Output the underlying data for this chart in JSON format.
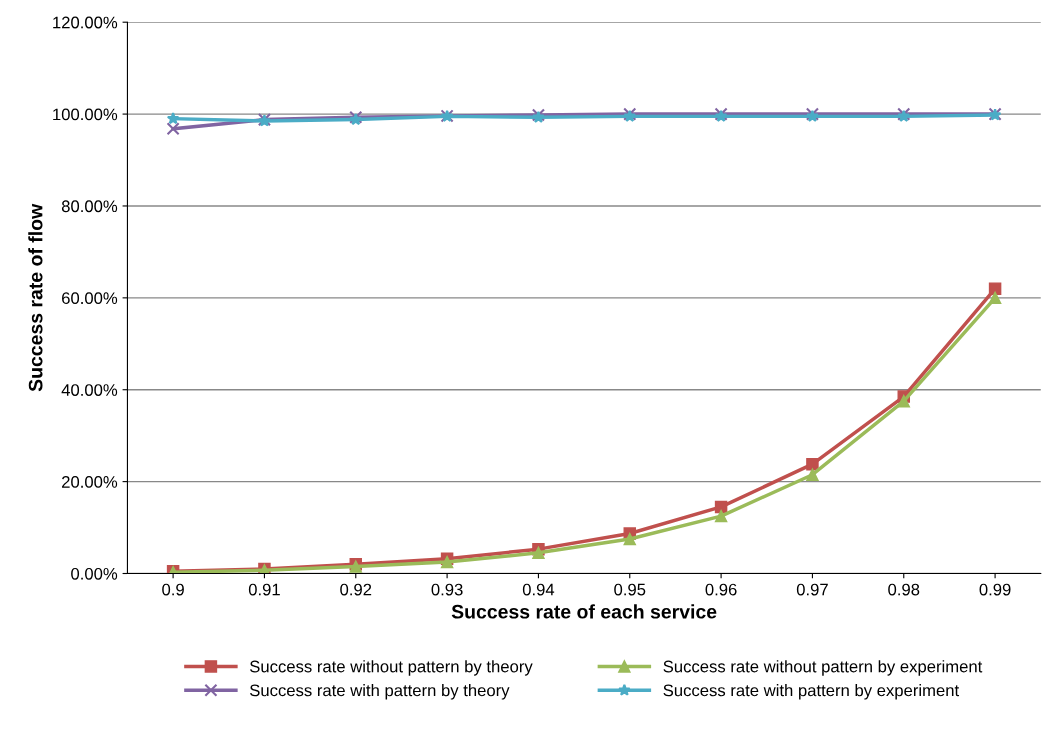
{
  "chart_data": {
    "type": "line",
    "xlabel": "Success rate of each service",
    "ylabel": "Success rate of flow",
    "categories": [
      "0.9",
      "0.91",
      "0.92",
      "0.93",
      "0.94",
      "0.95",
      "0.96",
      "0.97",
      "0.98",
      "0.99"
    ],
    "series": [
      {
        "name": "Success rate without pattern by theory",
        "color": "#c0504d",
        "marker": "square",
        "values": [
          0.5,
          1,
          2,
          3.2,
          5.3,
          8.7,
          14.5,
          23.8,
          38.5,
          62
        ]
      },
      {
        "name": "Success rate without pattern by experiment",
        "color": "#9bbb59",
        "marker": "triangle",
        "values": [
          0.3,
          0.7,
          1.5,
          2.5,
          4.5,
          7.5,
          12.5,
          21.5,
          37.5,
          60
        ]
      },
      {
        "name": "Success rate with pattern by theory",
        "color": "#8064a2",
        "marker": "cross",
        "values": [
          96.8,
          98.8,
          99.3,
          99.6,
          99.8,
          100,
          100,
          100,
          100,
          100
        ]
      },
      {
        "name": "Success rate with pattern by experiment",
        "color": "#4bacc6",
        "marker": "star",
        "values": [
          99,
          98.5,
          98.8,
          99.5,
          99.3,
          99.5,
          99.5,
          99.5,
          99.5,
          99.8
        ]
      }
    ],
    "ylim": [
      0,
      120
    ],
    "yticks": [
      {
        "value": 0,
        "label": "0.00%"
      },
      {
        "value": 20,
        "label": "20.00%"
      },
      {
        "value": 40,
        "label": "40.00%"
      },
      {
        "value": 60,
        "label": "60.00%"
      },
      {
        "value": 80,
        "label": "80.00%"
      },
      {
        "value": 100,
        "label": "100.00%"
      },
      {
        "value": 120,
        "label": "120.00%"
      }
    ],
    "grid": "y",
    "legend": "bottom",
    "line_style": "solid"
  }
}
